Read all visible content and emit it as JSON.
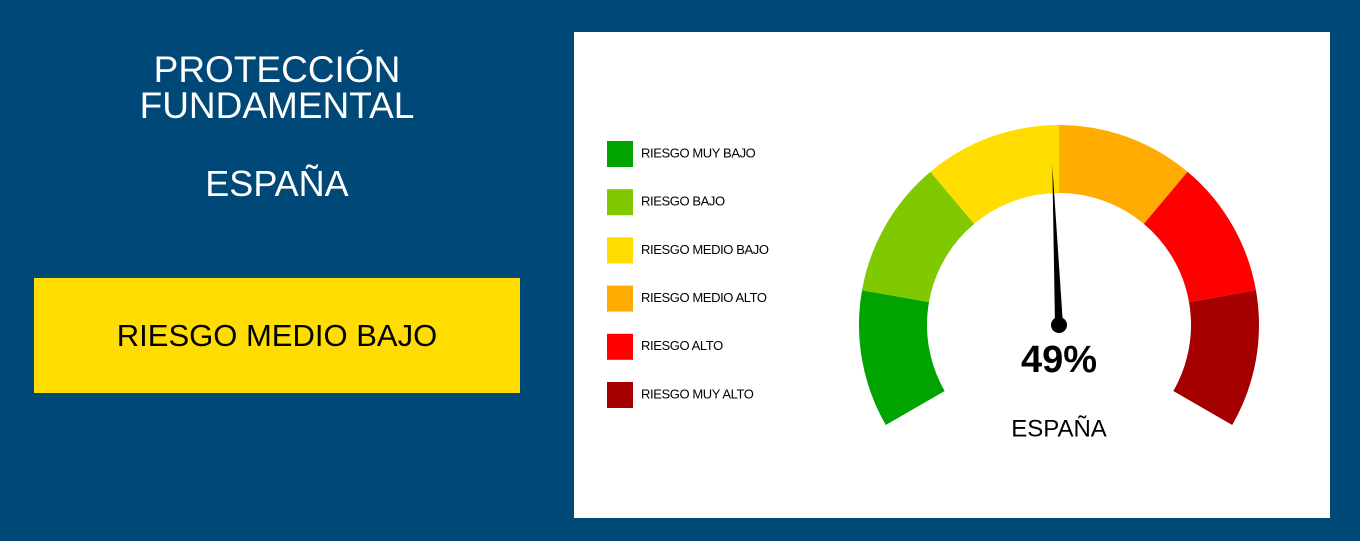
{
  "panel": {
    "title": "PROTECCIÓN FUNDAMENTAL",
    "region": "ESPAÑA",
    "risk_level": "RIESGO MEDIO BAJO",
    "risk_color": "#ffdd00"
  },
  "chart_data": {
    "type": "gauge",
    "categories": [
      "ESPAÑA"
    ],
    "values": [
      49
    ],
    "value_labels": [
      "49%"
    ],
    "ylim": [
      0,
      100
    ],
    "series": [
      {
        "name": "RIESGO MUY BAJO",
        "color": "#00a300"
      },
      {
        "name": "RIESGO BAJO",
        "color": "#80c800"
      },
      {
        "name": "RIESGO MEDIO BAJO",
        "color": "#ffdd00"
      },
      {
        "name": "RIESGO MEDIO ALTO",
        "color": "#ffab00"
      },
      {
        "name": "RIESGO ALTO",
        "color": "#ff0000"
      },
      {
        "name": "RIESGO MUY ALTO",
        "color": "#a50000"
      }
    ]
  }
}
